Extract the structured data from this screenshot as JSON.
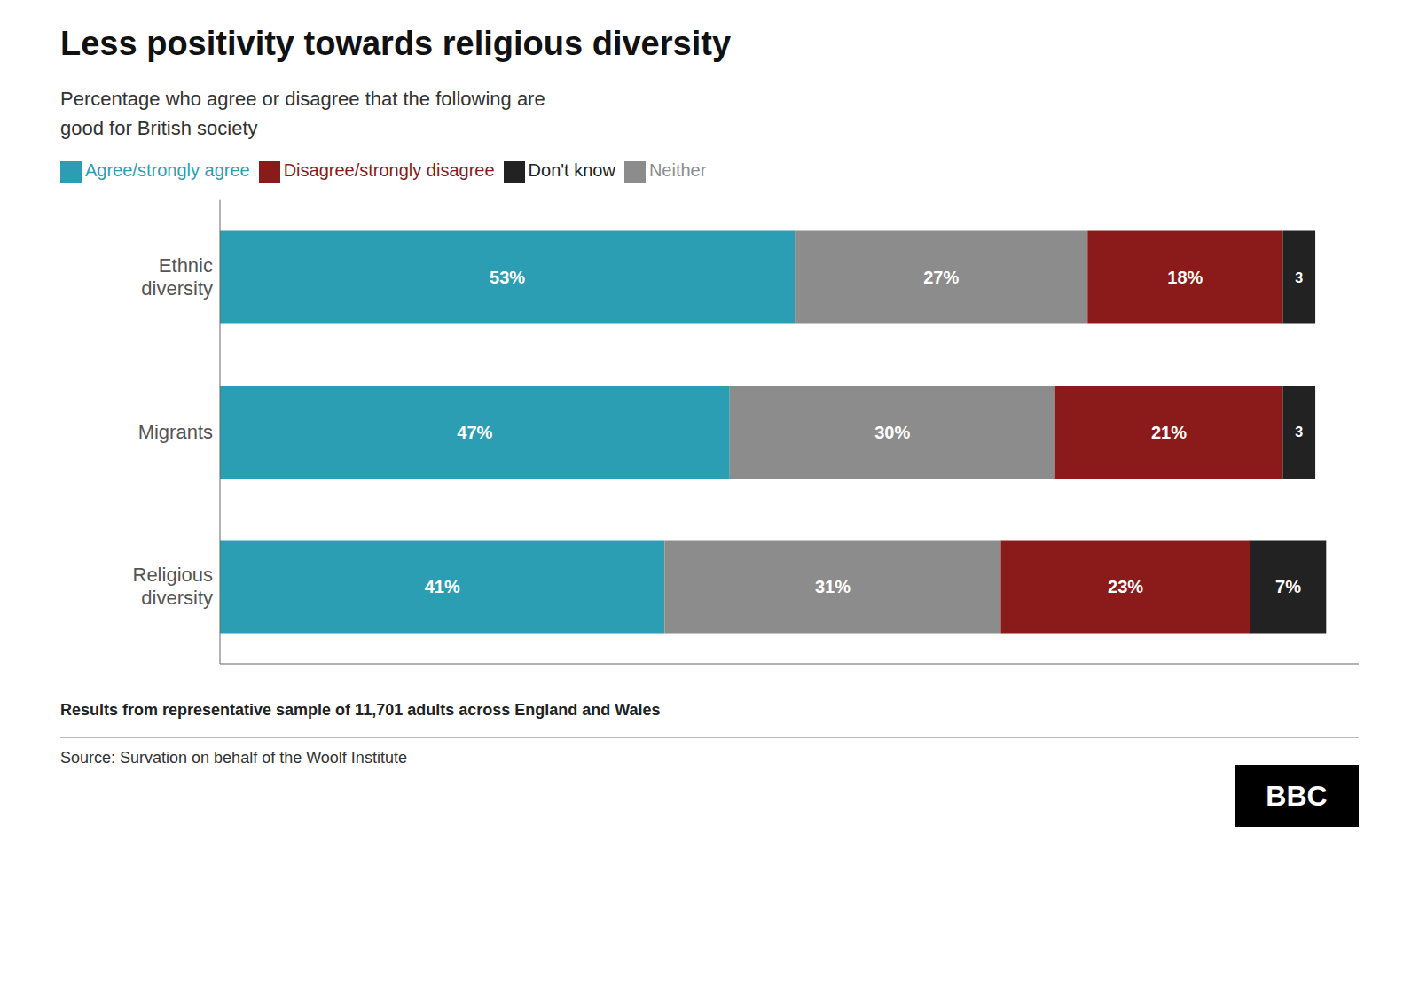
{
  "chart_data": {
    "type": "bar",
    "orientation": "horizontal",
    "stacked": true,
    "data_labels": true,
    "grid": false,
    "tick_labels": "y",
    "legend": "top",
    "title": "Less positivity towards religious diversity",
    "subtitle": "Percentage who agree or disagree that the following are\ngood for British society",
    "annotations": [
      "Results from representative sample of 11,701 adults across England and Wales",
      "Source: Survation on behalf of the Woolf Institute",
      "BBC"
    ],
    "categories": [
      "Ethnic\ndiversity",
      "Migrants",
      "Religious\ndiversity"
    ],
    "xlim": [
      0,
      105
    ],
    "series": [
      {
        "name": "Agree/strongly agree",
        "color": "#2b9eb3",
        "values": [
          53,
          47,
          41
        ],
        "value_labels": [
          "53%",
          "47%",
          "41%"
        ]
      },
      {
        "name": "Neither",
        "color": "#8c8c8c",
        "values": [
          27,
          30,
          31
        ],
        "value_labels": [
          "27%",
          "30%",
          "31%"
        ]
      },
      {
        "name": "Disagree/strongly disagree",
        "color": "#8b1a1a",
        "values": [
          18,
          21,
          23
        ],
        "value_labels": [
          "18%",
          "21%",
          "23%"
        ]
      },
      {
        "name": "Don't know",
        "color": "#222222",
        "values": [
          3,
          3,
          7
        ],
        "value_labels": [
          "3",
          "3",
          "7%"
        ]
      }
    ]
  }
}
